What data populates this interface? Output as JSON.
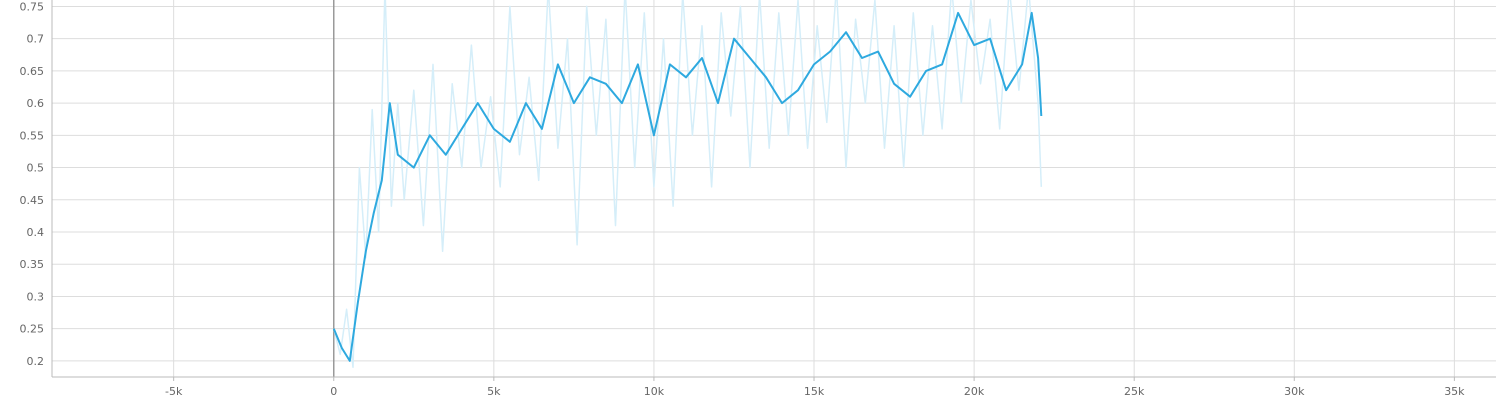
{
  "chart_data": {
    "type": "line",
    "title": "",
    "xlabel": "",
    "ylabel": "",
    "xlim": [
      -8800,
      36300
    ],
    "ylim": [
      0.175,
      0.76
    ],
    "x_ticks": [
      {
        "value": -5000,
        "label": "-5k"
      },
      {
        "value": 0,
        "label": "0"
      },
      {
        "value": 5000,
        "label": "5k"
      },
      {
        "value": 10000,
        "label": "10k"
      },
      {
        "value": 15000,
        "label": "15k"
      },
      {
        "value": 20000,
        "label": "20k"
      },
      {
        "value": 25000,
        "label": "25k"
      },
      {
        "value": 30000,
        "label": "30k"
      },
      {
        "value": 35000,
        "label": "35k"
      }
    ],
    "y_ticks": [
      {
        "value": 0.2,
        "label": "0.2"
      },
      {
        "value": 0.25,
        "label": "0.25"
      },
      {
        "value": 0.3,
        "label": "0.3"
      },
      {
        "value": 0.35,
        "label": "0.35"
      },
      {
        "value": 0.4,
        "label": "0.4"
      },
      {
        "value": 0.45,
        "label": "0.45"
      },
      {
        "value": 0.5,
        "label": "0.5"
      },
      {
        "value": 0.55,
        "label": "0.55"
      },
      {
        "value": 0.6,
        "label": "0.6"
      },
      {
        "value": 0.65,
        "label": "0.65"
      },
      {
        "value": 0.7,
        "label": "0.7"
      },
      {
        "value": 0.75,
        "label": "0.75"
      }
    ],
    "grid": true,
    "legend": "none",
    "series": [
      {
        "role": "smoothed",
        "color": "#2ea9df",
        "x": [
          0,
          250,
          500,
          750,
          1000,
          1250,
          1500,
          1750,
          2000,
          2500,
          3000,
          3500,
          4000,
          4500,
          5000,
          5500,
          6000,
          6500,
          7000,
          7500,
          8000,
          8500,
          9000,
          9500,
          10000,
          10500,
          11000,
          11500,
          12000,
          12500,
          13000,
          13500,
          14000,
          14500,
          15000,
          15500,
          16000,
          16500,
          17000,
          17500,
          18000,
          18500,
          19000,
          19500,
          20000,
          20500,
          21000,
          21500,
          21800,
          22000,
          22100
        ],
        "y": [
          0.25,
          0.22,
          0.2,
          0.29,
          0.37,
          0.43,
          0.48,
          0.6,
          0.52,
          0.5,
          0.55,
          0.52,
          0.56,
          0.6,
          0.56,
          0.54,
          0.6,
          0.56,
          0.66,
          0.6,
          0.64,
          0.63,
          0.6,
          0.66,
          0.55,
          0.66,
          0.64,
          0.67,
          0.6,
          0.7,
          0.67,
          0.64,
          0.6,
          0.62,
          0.66,
          0.68,
          0.71,
          0.67,
          0.68,
          0.63,
          0.61,
          0.65,
          0.66,
          0.74,
          0.69,
          0.7,
          0.62,
          0.66,
          0.74,
          0.67,
          0.58
        ]
      },
      {
        "role": "raw",
        "color": "#d5eef9",
        "x": [
          0,
          200,
          400,
          600,
          800,
          1000,
          1200,
          1400,
          1600,
          1800,
          2000,
          2200,
          2500,
          2800,
          3100,
          3400,
          3700,
          4000,
          4300,
          4600,
          4900,
          5200,
          5500,
          5800,
          6100,
          6400,
          6700,
          7000,
          7300,
          7600,
          7900,
          8200,
          8500,
          8800,
          9100,
          9400,
          9700,
          10000,
          10300,
          10600,
          10900,
          11200,
          11500,
          11800,
          12100,
          12400,
          12700,
          13000,
          13300,
          13600,
          13900,
          14200,
          14500,
          14800,
          15100,
          15400,
          15700,
          16000,
          16300,
          16600,
          16900,
          17200,
          17500,
          17800,
          18100,
          18400,
          18700,
          19000,
          19300,
          19600,
          19900,
          20200,
          20500,
          20800,
          21100,
          21400,
          21700,
          22000,
          22100
        ],
        "y": [
          0.25,
          0.21,
          0.28,
          0.19,
          0.5,
          0.36,
          0.59,
          0.4,
          0.78,
          0.44,
          0.6,
          0.45,
          0.62,
          0.41,
          0.66,
          0.37,
          0.63,
          0.5,
          0.69,
          0.5,
          0.61,
          0.47,
          0.75,
          0.52,
          0.64,
          0.48,
          0.78,
          0.53,
          0.7,
          0.38,
          0.75,
          0.55,
          0.73,
          0.41,
          0.78,
          0.5,
          0.74,
          0.47,
          0.7,
          0.44,
          0.77,
          0.55,
          0.72,
          0.47,
          0.74,
          0.58,
          0.75,
          0.5,
          0.77,
          0.53,
          0.74,
          0.55,
          0.76,
          0.53,
          0.72,
          0.57,
          0.78,
          0.5,
          0.73,
          0.6,
          0.76,
          0.53,
          0.72,
          0.5,
          0.74,
          0.55,
          0.72,
          0.56,
          0.78,
          0.6,
          0.76,
          0.63,
          0.73,
          0.56,
          0.78,
          0.62,
          0.78,
          0.6,
          0.47
        ]
      }
    ]
  }
}
